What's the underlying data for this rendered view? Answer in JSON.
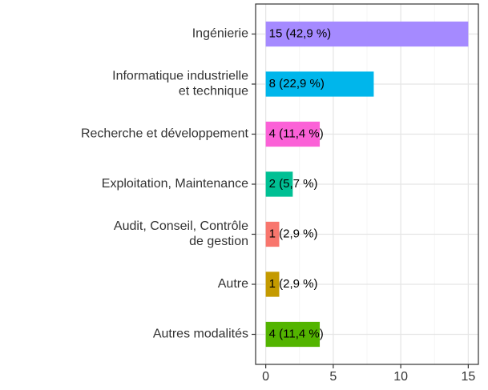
{
  "chart_data": {
    "type": "barh",
    "categories": [
      "Ingénierie",
      "Informatique industrielle\net technique",
      "Recherche et développement",
      "Exploitation, Maintenance",
      "Audit, Conseil, Contrôle\nde gestion",
      "Autre",
      "Autres modalités"
    ],
    "values": [
      15,
      8,
      4,
      2,
      1,
      1,
      4
    ],
    "value_labels": [
      "15 (42,9 %)",
      "8 (22,9 %)",
      "4 (11,4 %)",
      "2 (5,7 %)",
      "1 (2,9 %)",
      "1 (2,9 %)",
      "4 (11,4 %)"
    ],
    "colors": [
      "#A58AFF",
      "#00B6EB",
      "#FB61D7",
      "#00C094",
      "#F8766D",
      "#C49A00",
      "#53B400"
    ],
    "xlim": [
      -0.75,
      15.75
    ],
    "xticks": [
      0,
      5,
      10,
      15
    ],
    "minor_xticks": [
      2.5,
      7.5,
      12.5
    ],
    "grid": true
  }
}
